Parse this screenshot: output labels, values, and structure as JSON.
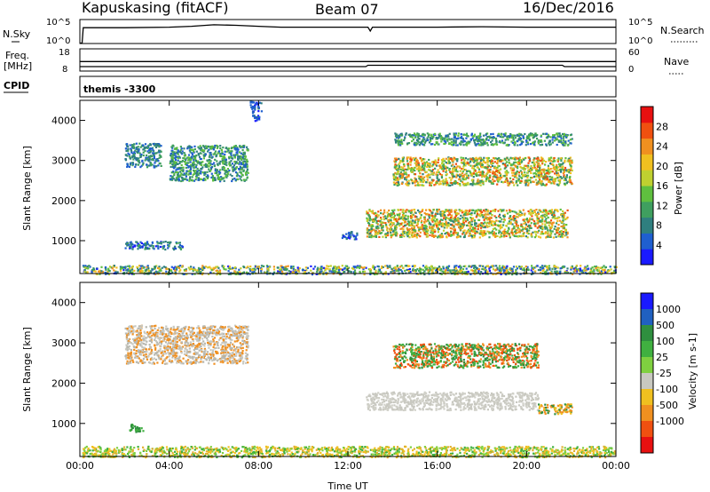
{
  "header": {
    "station": "Kapuskasing (fitACF)",
    "beam": "Beam 07",
    "date": "16/Dec/2016"
  },
  "chart_data": [
    {
      "type": "line",
      "panel": "noise",
      "left_label": "N.Sky",
      "right_label": "N.Search",
      "left_ticks": [
        "10^5",
        "10^0"
      ],
      "right_ticks": [
        "10^5",
        "10^0"
      ],
      "x_ticks": [
        "00:00",
        "04:00",
        "08:00",
        "12:00",
        "16:00",
        "20:00",
        "00:00"
      ],
      "xlim": [
        0,
        24
      ],
      "series": [
        {
          "values_note": "",
          "x": [
            0,
            0.1,
            0.15,
            2,
            4,
            5,
            6,
            7,
            8,
            9,
            10,
            12,
            12.9,
            13,
            13.1,
            14,
            16,
            18,
            20,
            22,
            24
          ],
          "y": [
            0.1,
            0.1,
            3.3,
            3.3,
            3.4,
            3.6,
            3.9,
            3.8,
            3.6,
            3.4,
            3.4,
            3.4,
            3.4,
            2.6,
            3.4,
            3.4,
            3.4,
            3.5,
            3.4,
            3.4,
            3.4
          ]
        }
      ]
    },
    {
      "type": "line",
      "panel": "frequency",
      "left_label": "Freq.",
      "left_unit": "[MHz]",
      "right_label": "Nave",
      "left_ticks": [
        "18",
        "8"
      ],
      "right_ticks": [
        "60",
        "0"
      ],
      "x_ticks": [
        "00:00",
        "04:00",
        "08:00",
        "12:00",
        "16:00",
        "20:00",
        "00:00"
      ],
      "xlim": [
        0,
        24
      ],
      "series": [
        {
          "x": [
            0,
            12.8,
            12.9,
            21.6,
            21.7,
            24
          ],
          "y": [
            10,
            10,
            10.6,
            10.6,
            10,
            10
          ]
        },
        {
          "x": [
            0,
            24
          ],
          "y": [
            12.3,
            12.3
          ]
        }
      ]
    },
    {
      "type": "table",
      "panel": "cpid",
      "label": "CPID",
      "value": "themis -3300"
    },
    {
      "type": "heatmap",
      "panel": "power",
      "ylabel": "Slant Range [km]",
      "colorbar_label": "Power [dB]",
      "y_ticks": [
        "4000",
        "3000",
        "2000",
        "1000"
      ],
      "x_ticks": [
        "00:00",
        "04:00",
        "08:00",
        "12:00",
        "16:00",
        "20:00",
        "00:00"
      ],
      "xlim": [
        0,
        24
      ],
      "ylim": [
        180,
        4500
      ],
      "colorbar_ticks": [
        "4",
        "8",
        "12",
        "16",
        "20",
        "24",
        "28"
      ],
      "colorbar_range": [
        0,
        32
      ],
      "colors": [
        "#1a1aff",
        "#1f5fd0",
        "#2f7f7f",
        "#3f9f5f",
        "#5fbf3f",
        "#bfd030",
        "#f0c020",
        "#f09020",
        "#f05010",
        "#e81010"
      ],
      "regions": [
        {
          "x": [
            0.1,
            24
          ],
          "y": [
            180,
            400
          ],
          "level": [
            2,
            24
          ]
        },
        {
          "x": [
            2,
            3.6
          ],
          "y": [
            2850,
            3450
          ],
          "level": [
            4,
            12
          ]
        },
        {
          "x": [
            4,
            7.5
          ],
          "y": [
            2500,
            3400
          ],
          "level": [
            4,
            16
          ]
        },
        {
          "x": [
            2,
            4.6
          ],
          "y": [
            800,
            1000
          ],
          "level": [
            2,
            12
          ]
        },
        {
          "x": [
            7.6,
            8.1
          ],
          "y": [
            4000,
            4500
          ],
          "level": [
            2,
            8
          ]
        },
        {
          "x": [
            11.7,
            12.4
          ],
          "y": [
            1050,
            1250
          ],
          "level": [
            2,
            8
          ]
        },
        {
          "x": [
            12.8,
            21.8
          ],
          "y": [
            1100,
            1800
          ],
          "level": [
            8,
            28
          ]
        },
        {
          "x": [
            14,
            22
          ],
          "y": [
            2400,
            3100
          ],
          "level": [
            8,
            28
          ]
        },
        {
          "x": [
            14,
            22
          ],
          "y": [
            3400,
            3700
          ],
          "level": [
            4,
            16
          ]
        }
      ]
    },
    {
      "type": "heatmap",
      "panel": "velocity",
      "ylabel": "Slant Range [km]",
      "colorbar_label": "Velocity [m s-1]",
      "xlabel": "Time UT",
      "y_ticks": [
        "4000",
        "3000",
        "2000",
        "1000"
      ],
      "x_ticks": [
        "00:00",
        "04:00",
        "08:00",
        "12:00",
        "16:00",
        "20:00",
        "00:00"
      ],
      "xlim": [
        0,
        24
      ],
      "ylim": [
        180,
        4500
      ],
      "colorbar_ticks": [
        "1000",
        "500",
        "100",
        "25",
        "-25",
        "-100",
        "-500",
        "-1000"
      ],
      "colors": [
        "#1a1aff",
        "#2060c0",
        "#2f8f3f",
        "#40b040",
        "#7fd040",
        "#c8c8c0",
        "#f0c020",
        "#f09020",
        "#f05010",
        "#e81010"
      ],
      "regions": [
        {
          "x": [
            0.1,
            24
          ],
          "y": [
            180,
            450
          ],
          "class": "ground",
          "palette": [
            "#f0c020",
            "#e0b030",
            "#7fd040",
            "#40b040"
          ]
        },
        {
          "x": [
            2,
            7.5
          ],
          "y": [
            2500,
            3450
          ],
          "class": "mixed",
          "palette": [
            "#c8c8c0",
            "#b8b8b0",
            "#f09020"
          ]
        },
        {
          "x": [
            12.8,
            20.5
          ],
          "y": [
            1350,
            1800
          ],
          "class": "gray",
          "palette": [
            "#c8c8c0",
            "#d0d0c8"
          ]
        },
        {
          "x": [
            14,
            20.5
          ],
          "y": [
            2400,
            3000
          ],
          "class": "mixed",
          "palette": [
            "#2f8f3f",
            "#40b040",
            "#f09020",
            "#f05010"
          ]
        },
        {
          "x": [
            20.5,
            22
          ],
          "y": [
            1250,
            1500
          ],
          "class": "orange",
          "palette": [
            "#f0c020",
            "#f09020",
            "#2f8f3f"
          ]
        },
        {
          "x": [
            2.2,
            2.8
          ],
          "y": [
            800,
            1000
          ],
          "class": "green",
          "palette": [
            "#2f8f3f",
            "#40b040"
          ]
        }
      ]
    }
  ]
}
